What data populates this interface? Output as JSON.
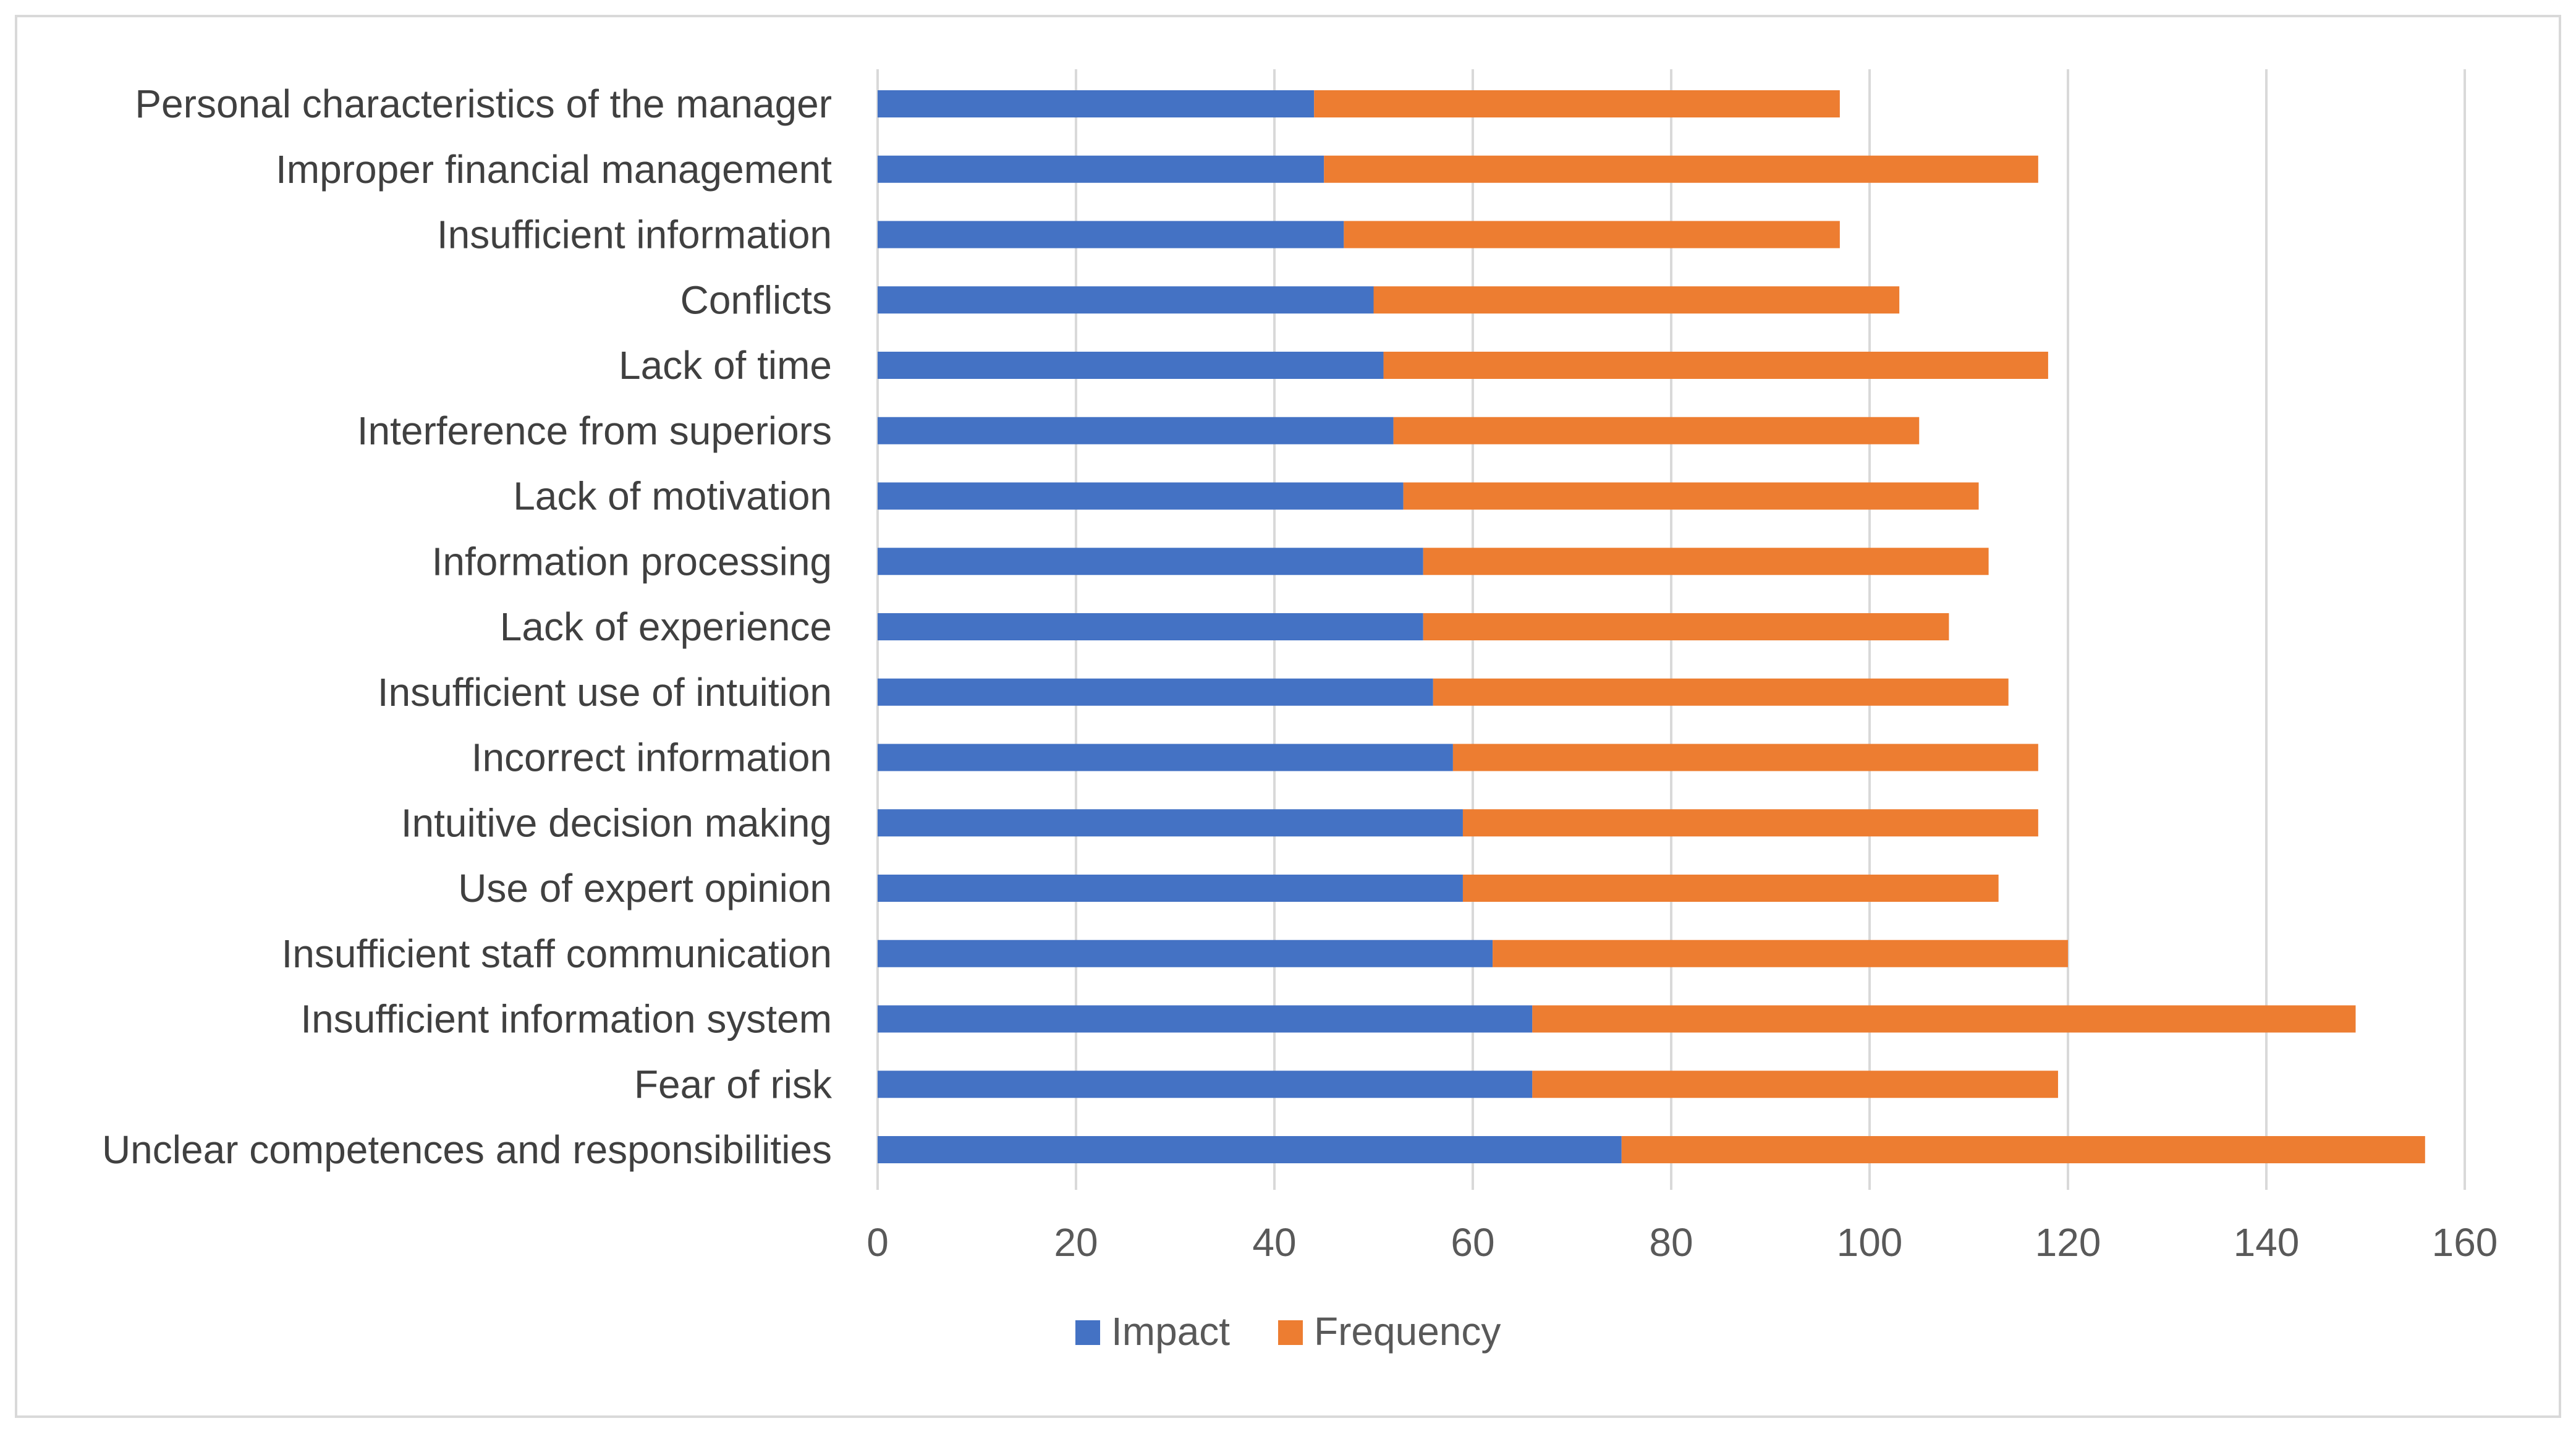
{
  "chart_data": {
    "type": "bar",
    "orientation": "horizontal",
    "stacked": true,
    "title": "",
    "xlabel": "",
    "ylabel": "",
    "xlim": [
      0,
      160
    ],
    "xticks": [
      0,
      20,
      40,
      60,
      80,
      100,
      120,
      140,
      160
    ],
    "grid": "vertical",
    "legend_position": "bottom",
    "categories": [
      "Personal characteristics of the manager",
      "Improper financial management",
      "Insufficient information",
      "Conflicts",
      "Lack of time",
      "Interference from superiors",
      "Lack of motivation",
      "Information processing",
      "Lack of experience",
      "Insufficient use of intuition",
      "Incorrect information",
      "Intuitive decision making",
      "Use of expert opinion",
      "Insufficient staff communication",
      "Insufficient information system",
      "Fear of risk",
      "Unclear competences and responsibilities"
    ],
    "series": [
      {
        "name": "Impact",
        "color": "#4472c4",
        "values": [
          44,
          45,
          47,
          50,
          51,
          52,
          53,
          55,
          55,
          56,
          58,
          59,
          59,
          62,
          66,
          66,
          75
        ]
      },
      {
        "name": "Frequency",
        "color": "#ed7d31",
        "values": [
          53,
          72,
          50,
          53,
          67,
          53,
          58,
          57,
          53,
          58,
          59,
          58,
          54,
          58,
          83,
          53,
          81
        ]
      }
    ]
  }
}
